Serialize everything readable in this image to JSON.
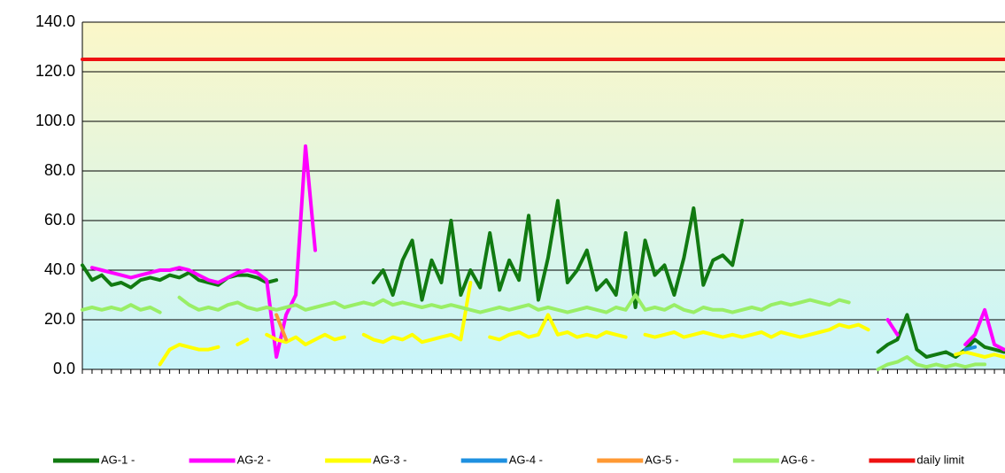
{
  "chart_data": {
    "type": "line",
    "categories": [
      null,
      null,
      null,
      null,
      null,
      null,
      null,
      null,
      null,
      null,
      null,
      null,
      null,
      null,
      null,
      null,
      null,
      null,
      null,
      null,
      null,
      null,
      null,
      null,
      null,
      null,
      null,
      null,
      null,
      null,
      null,
      null,
      null,
      null,
      null,
      null,
      null,
      null,
      null,
      null,
      null,
      null,
      null,
      null,
      null,
      null,
      null,
      null,
      null,
      null,
      null,
      null,
      null,
      null,
      null,
      null,
      null,
      null,
      null,
      null,
      null,
      null,
      null,
      null,
      null,
      null,
      null,
      null,
      null,
      null,
      null,
      null,
      null,
      null,
      null,
      null,
      null,
      null,
      null,
      null,
      null,
      null,
      null,
      null,
      null,
      null,
      null,
      null,
      null,
      null,
      null,
      null,
      null,
      null,
      null,
      null
    ],
    "ylim": [
      0,
      140
    ],
    "yticks": [
      {
        "value": 0,
        "label": "0.0"
      },
      {
        "value": 20,
        "label": "20.0"
      },
      {
        "value": 40,
        "label": "40.0"
      },
      {
        "value": 60,
        "label": "60.0"
      },
      {
        "value": 80,
        "label": "80.0"
      },
      {
        "value": 100,
        "label": "100.0"
      },
      {
        "value": 120,
        "label": "120.0"
      },
      {
        "value": 140,
        "label": "140.0"
      }
    ],
    "grid": true,
    "legend": "bottom",
    "series": [
      {
        "name": "AG-1 -",
        "color": "#117a11",
        "values": [
          42,
          36,
          38,
          34,
          35,
          33,
          36,
          37,
          36,
          38,
          37,
          39,
          36,
          35,
          34,
          37,
          38,
          38,
          37,
          35,
          36,
          null,
          null,
          null,
          null,
          null,
          null,
          null,
          null,
          null,
          35,
          40,
          30,
          44,
          52,
          28,
          44,
          35,
          60,
          30,
          40,
          33,
          55,
          32,
          44,
          36,
          62,
          28,
          45,
          68,
          35,
          40,
          48,
          32,
          36,
          30,
          55,
          25,
          52,
          38,
          42,
          30,
          45,
          65,
          34,
          44,
          46,
          42,
          60,
          null,
          null,
          null,
          42,
          null,
          null,
          null,
          null,
          null,
          null,
          null,
          null,
          null,
          7,
          10,
          12,
          22,
          8,
          5,
          6,
          7,
          5,
          8,
          12,
          9,
          8,
          7
        ]
      },
      {
        "name": "AG-2 -",
        "color": "#ff00ff",
        "values": [
          null,
          41,
          40,
          39,
          38,
          37,
          38,
          39,
          40,
          40,
          41,
          40,
          38,
          36,
          35,
          37,
          39,
          40,
          39,
          36,
          5,
          22,
          30,
          90,
          48,
          null,
          null,
          null,
          null,
          null,
          null,
          null,
          null,
          null,
          null,
          null,
          null,
          null,
          null,
          null,
          null,
          null,
          null,
          null,
          null,
          null,
          null,
          null,
          null,
          null,
          null,
          null,
          null,
          null,
          null,
          null,
          null,
          null,
          null,
          null,
          null,
          null,
          null,
          null,
          null,
          null,
          null,
          null,
          null,
          null,
          null,
          null,
          null,
          null,
          null,
          null,
          null,
          null,
          null,
          null,
          null,
          null,
          null,
          20,
          14,
          null,
          null,
          null,
          null,
          null,
          null,
          10,
          14,
          24,
          10,
          8
        ]
      },
      {
        "name": "AG-3 -",
        "color": "#ffff00",
        "values": [
          null,
          null,
          null,
          null,
          null,
          null,
          null,
          null,
          2,
          8,
          10,
          9,
          8,
          8,
          9,
          null,
          10,
          12,
          null,
          14,
          12,
          11,
          13,
          10,
          12,
          14,
          12,
          13,
          null,
          14,
          12,
          11,
          13,
          12,
          14,
          11,
          12,
          13,
          14,
          12,
          35,
          null,
          13,
          12,
          14,
          15,
          13,
          14,
          22,
          14,
          15,
          13,
          14,
          13,
          15,
          14,
          13,
          null,
          14,
          13,
          14,
          15,
          13,
          14,
          15,
          14,
          13,
          14,
          13,
          14,
          15,
          13,
          15,
          14,
          13,
          14,
          15,
          16,
          18,
          17,
          18,
          16,
          null,
          null,
          null,
          null,
          null,
          null,
          null,
          null,
          6,
          7,
          6,
          5,
          6,
          5
        ]
      },
      {
        "name": "AG-4 -",
        "color": "#1e90e0",
        "values": [
          null,
          null,
          null,
          null,
          null,
          null,
          null,
          null,
          null,
          null,
          null,
          null,
          null,
          null,
          null,
          null,
          null,
          null,
          null,
          null,
          null,
          null,
          null,
          null,
          null,
          null,
          null,
          null,
          null,
          null,
          null,
          null,
          null,
          null,
          null,
          null,
          null,
          null,
          null,
          null,
          null,
          null,
          null,
          null,
          null,
          null,
          null,
          null,
          null,
          null,
          null,
          null,
          null,
          null,
          null,
          null,
          null,
          null,
          null,
          null,
          null,
          null,
          null,
          null,
          null,
          null,
          null,
          null,
          null,
          null,
          null,
          null,
          null,
          null,
          null,
          null,
          null,
          null,
          null,
          null,
          null,
          null,
          null,
          null,
          null,
          null,
          null,
          null,
          null,
          null,
          null,
          8,
          9,
          null,
          null,
          null
        ]
      },
      {
        "name": "AG-5 -",
        "color": "#ff9933",
        "values": [
          null,
          null,
          null,
          null,
          null,
          null,
          null,
          null,
          null,
          null,
          null,
          null,
          null,
          null,
          null,
          null,
          null,
          null,
          null,
          null,
          22,
          12,
          null,
          null,
          null,
          null,
          null,
          null,
          null,
          null,
          null,
          null,
          null,
          null,
          null,
          null,
          null,
          null,
          null,
          null,
          null,
          null,
          null,
          null,
          null,
          null,
          null,
          null,
          null,
          null,
          null,
          null,
          null,
          null,
          null,
          null,
          null,
          null,
          null,
          null,
          null,
          null,
          null,
          null,
          null,
          null,
          null,
          null,
          null,
          null,
          null,
          null,
          null,
          null,
          null,
          null,
          null,
          null,
          null,
          null,
          null,
          null,
          null,
          null,
          null,
          null,
          null,
          null,
          null,
          null,
          null,
          null,
          null,
          null,
          null,
          null
        ]
      },
      {
        "name": "AG-6 -",
        "color": "#99ee66",
        "values": [
          24,
          25,
          24,
          25,
          24,
          26,
          24,
          25,
          23,
          null,
          29,
          26,
          24,
          25,
          24,
          26,
          27,
          25,
          24,
          25,
          24,
          25,
          26,
          24,
          25,
          26,
          27,
          25,
          26,
          27,
          26,
          28,
          26,
          27,
          26,
          25,
          26,
          25,
          26,
          25,
          24,
          23,
          24,
          25,
          24,
          25,
          26,
          24,
          25,
          24,
          23,
          24,
          25,
          24,
          23,
          25,
          24,
          30,
          24,
          25,
          24,
          26,
          24,
          23,
          25,
          24,
          24,
          23,
          24,
          25,
          24,
          26,
          27,
          26,
          27,
          28,
          27,
          26,
          28,
          27,
          null,
          null,
          0,
          2,
          3,
          5,
          2,
          1,
          2,
          1,
          2,
          1,
          2,
          2,
          null,
          null
        ]
      },
      {
        "name": "daily limit",
        "color": "#ee1111",
        "values": [
          125,
          125,
          125,
          125,
          125,
          125,
          125,
          125,
          125,
          125,
          125,
          125,
          125,
          125,
          125,
          125,
          125,
          125,
          125,
          125,
          125,
          125,
          125,
          125,
          125,
          125,
          125,
          125,
          125,
          125,
          125,
          125,
          125,
          125,
          125,
          125,
          125,
          125,
          125,
          125,
          125,
          125,
          125,
          125,
          125,
          125,
          125,
          125,
          125,
          125,
          125,
          125,
          125,
          125,
          125,
          125,
          125,
          125,
          125,
          125,
          125,
          125,
          125,
          125,
          125,
          125,
          125,
          125,
          125,
          125,
          125,
          125,
          125,
          125,
          125,
          125,
          125,
          125,
          125,
          125,
          125,
          125,
          125,
          125,
          125,
          125,
          125,
          125,
          125,
          125,
          125,
          125,
          125,
          125,
          125,
          125
        ]
      }
    ]
  }
}
